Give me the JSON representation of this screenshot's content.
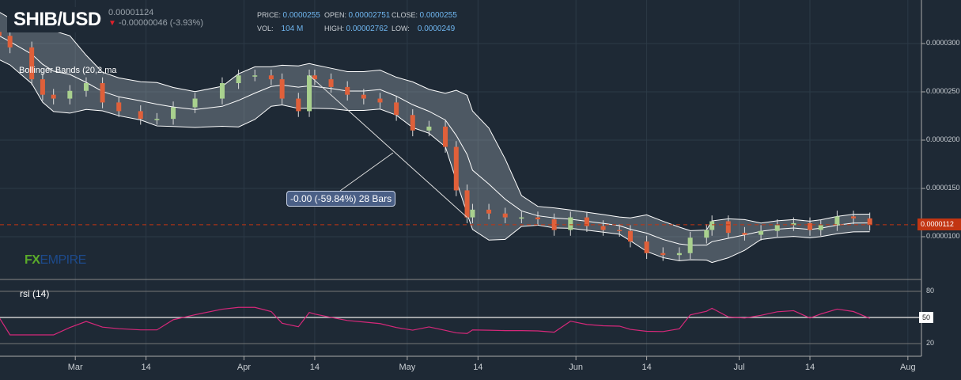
{
  "header": {
    "symbol": "SHIB/USD",
    "last": "0.00001124",
    "change": "-0.00000046 (-3.93%)",
    "change_direction": "down"
  },
  "ohlc": {
    "price_label": "PRICE:",
    "price": "0.0000255",
    "open_label": "OPEN:",
    "open": "0.00002751",
    "close_label": "CLOSE:",
    "close": "0.0000255",
    "vol_label": "VOL:",
    "vol": "104 M",
    "high_label": "HIGH:",
    "high": "0.00002762",
    "low_label": "LOW:",
    "low": "0.0000249"
  },
  "indicators": {
    "bollinger": "Bollinger Bands (20,2,ma",
    "rsi": "rsi (14)"
  },
  "measure_label": "-0.00 (-59.84%) 28 Bars",
  "logo": {
    "fx": "FX",
    "empire": "EMPIRE"
  },
  "current_price_tag": "0.0000112",
  "rsi_tag": "50",
  "colors": {
    "up": "#a9d18e",
    "down": "#e0603a",
    "rsi": "#d6287a",
    "current": "#c23512"
  },
  "chart_data": {
    "type": "candlestick",
    "title": "SHIB/USD",
    "value_scale": "1e-6",
    "price_ticks": [
      {
        "value": 30,
        "label": "0.0000300"
      },
      {
        "value": 25,
        "label": "0.0000250"
      },
      {
        "value": 20,
        "label": "0.0000200"
      },
      {
        "value": 15,
        "label": "0.0000150"
      },
      {
        "value": 10,
        "label": "0.0000100"
      }
    ],
    "rsi_ticks": [
      {
        "value": 80,
        "label": "80"
      },
      {
        "value": 20,
        "label": "20"
      }
    ],
    "x_ticks": [
      {
        "day": -1,
        "label": "14"
      },
      {
        "day": 15,
        "label": "Mar"
      },
      {
        "day": 28,
        "label": "14"
      },
      {
        "day": 46,
        "label": "Apr"
      },
      {
        "day": 59,
        "label": "14"
      },
      {
        "day": 76,
        "label": "May"
      },
      {
        "day": 89,
        "label": "14"
      },
      {
        "day": 107,
        "label": "Jun"
      },
      {
        "day": 120,
        "label": "14"
      },
      {
        "day": 137,
        "label": "Jul"
      },
      {
        "day": 150,
        "label": "14"
      },
      {
        "day": 168,
        "label": "Aug"
      }
    ],
    "candles": [
      [
        1,
        30.8
      ],
      [
        3,
        29.6
      ],
      [
        7,
        26.3
      ],
      [
        9,
        24.7
      ],
      [
        11,
        24.3
      ],
      [
        14,
        25.1
      ],
      [
        17,
        25.9
      ],
      [
        20,
        23.9
      ],
      [
        23,
        23.0
      ],
      [
        27,
        22.2
      ],
      [
        30,
        22.2
      ],
      [
        33,
        23.4
      ],
      [
        37,
        24.3
      ],
      [
        42,
        25.9
      ],
      [
        45,
        26.7
      ],
      [
        48,
        26.7
      ],
      [
        51,
        26.3
      ],
      [
        53,
        24.3
      ],
      [
        56,
        23.0
      ],
      [
        58,
        26.7
      ],
      [
        59,
        26.3
      ],
      [
        62,
        25.5
      ],
      [
        65,
        24.7
      ],
      [
        68,
        24.3
      ],
      [
        71,
        23.9
      ],
      [
        74,
        22.6
      ],
      [
        77,
        21.0
      ],
      [
        80,
        21.4
      ],
      [
        83,
        19.3
      ],
      [
        85,
        14.8
      ],
      [
        87,
        12.0
      ],
      [
        88,
        12.8
      ],
      [
        91,
        12.4
      ],
      [
        94,
        12.0
      ],
      [
        97,
        12.0
      ],
      [
        100,
        11.8
      ],
      [
        103,
        10.7
      ],
      [
        106,
        12.0
      ],
      [
        109,
        11.1
      ],
      [
        112,
        10.7
      ],
      [
        115,
        10.6
      ],
      [
        117,
        9.5
      ],
      [
        120,
        8.3
      ],
      [
        123,
        8.1
      ],
      [
        126,
        8.3
      ],
      [
        128,
        9.9
      ],
      [
        131,
        10.7
      ],
      [
        132,
        11.6
      ],
      [
        135,
        10.4
      ],
      [
        138,
        10.2
      ],
      [
        141,
        10.6
      ],
      [
        144,
        11.2
      ],
      [
        147,
        11.4
      ],
      [
        150,
        10.7
      ],
      [
        152,
        11.2
      ],
      [
        155,
        12.1
      ],
      [
        158,
        11.9
      ],
      [
        161,
        11.24
      ]
    ]
  }
}
